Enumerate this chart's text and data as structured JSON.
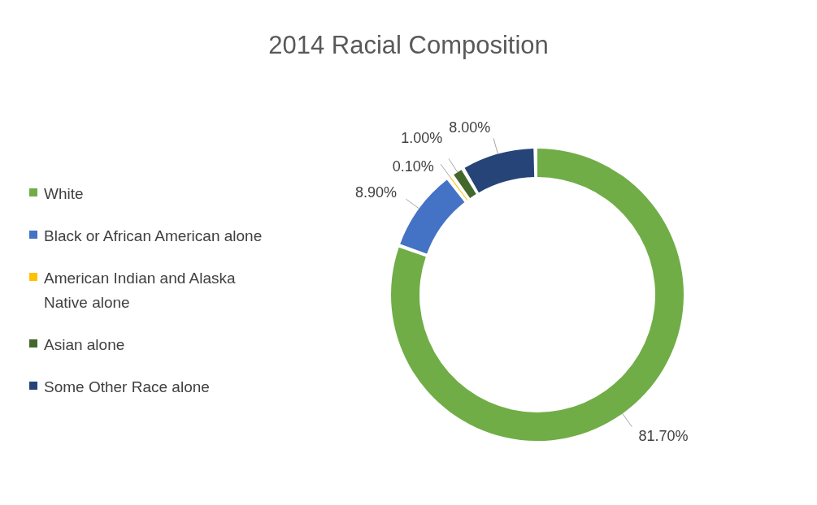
{
  "chart_data": {
    "type": "donut",
    "title": "2014 Racial Composition",
    "categories": [
      "White",
      "Black or African American alone",
      "American Indian and Alaska Native alone",
      "Asian alone",
      "Some Other Race alone"
    ],
    "values": [
      81.7,
      8.9,
      0.1,
      1.0,
      8.0
    ],
    "value_labels": [
      "81.70%",
      "8.90%",
      "0.10%",
      "1.00%",
      "8.00%"
    ],
    "colors": [
      "#70ad47",
      "#4472c4",
      "#ffc000",
      "#43682b",
      "#264478"
    ],
    "legend": "left"
  }
}
